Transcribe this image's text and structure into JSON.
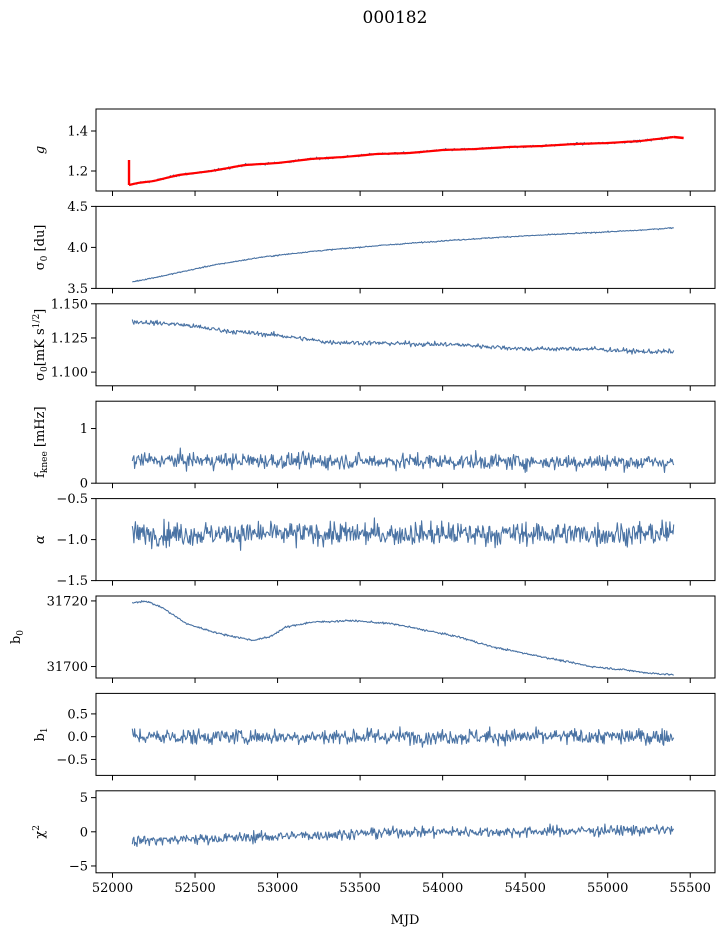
{
  "title": "000182",
  "xlabel": "MJD",
  "colors": {
    "series": "#4a73a4",
    "fit": "#ff0000"
  },
  "chart_data": [
    {
      "type": "line",
      "ylabel": "g",
      "xlim": [
        51900,
        55650
      ],
      "ylim": [
        1.1,
        1.51
      ],
      "yticks": [
        1.2,
        1.4
      ],
      "ytick_labels": [
        "1.2",
        "1.4"
      ],
      "x": [
        52100,
        52150,
        52250,
        52400,
        52600,
        52800,
        53000,
        53200,
        53400,
        53600,
        53800,
        54000,
        54200,
        54400,
        54600,
        54800,
        55000,
        55200,
        55300,
        55400
      ],
      "series": [
        {
          "values": [
            1.13,
            1.14,
            1.15,
            1.18,
            1.2,
            1.23,
            1.24,
            1.26,
            1.27,
            1.285,
            1.29,
            1.305,
            1.31,
            1.32,
            1.325,
            1.335,
            1.34,
            1.35,
            1.36,
            1.37
          ],
          "noise": 0.004
        }
      ],
      "fit_overlay": true,
      "xticklabels": false
    },
    {
      "type": "line",
      "ylabel": "σ0 [du]",
      "xlim": [
        51900,
        55650
      ],
      "ylim": [
        3.5,
        4.5
      ],
      "yticks": [
        3.5,
        4.0,
        4.5
      ],
      "ytick_labels": [
        "3.5",
        "4.0",
        "4.5"
      ],
      "x": [
        52120,
        52300,
        52600,
        52900,
        53200,
        53600,
        54000,
        54400,
        54800,
        55200,
        55400
      ],
      "series": [
        {
          "values": [
            3.58,
            3.65,
            3.78,
            3.88,
            3.95,
            4.02,
            4.08,
            4.13,
            4.17,
            4.21,
            4.24
          ],
          "noise": 0.005
        }
      ],
      "xticklabels": false
    },
    {
      "type": "line",
      "ylabel": "σ0[mK s^1/2]",
      "xlim": [
        51900,
        55650
      ],
      "ylim": [
        1.09,
        1.15
      ],
      "yticks": [
        1.1,
        1.125,
        1.15
      ],
      "ytick_labels": [
        "1.100",
        "1.125",
        "1.150"
      ],
      "x": [
        52120,
        52400,
        52700,
        53000,
        53300,
        53700,
        54100,
        54500,
        54900,
        55200,
        55400
      ],
      "series": [
        {
          "values": [
            1.137,
            1.135,
            1.13,
            1.127,
            1.122,
            1.121,
            1.12,
            1.117,
            1.117,
            1.115,
            1.115
          ],
          "noise": 0.0012
        }
      ],
      "xticklabels": false
    },
    {
      "type": "line",
      "ylabel": "f_knee [mHz]",
      "xlim": [
        51900,
        55650
      ],
      "ylim": [
        0,
        1.5
      ],
      "yticks": [
        0,
        1
      ],
      "ytick_labels": [
        "0",
        "1"
      ],
      "x": [
        52120,
        55400
      ],
      "series": [
        {
          "values": [
            0.42,
            0.38
          ],
          "noise": 0.1
        }
      ],
      "xticklabels": false
    },
    {
      "type": "line",
      "ylabel": "α",
      "xlim": [
        51900,
        55650
      ],
      "ylim": [
        -1.5,
        -0.5
      ],
      "yticks": [
        -1.5,
        -1.0,
        -0.5
      ],
      "ytick_labels": [
        "−1.5",
        "−1.0",
        "−0.5"
      ],
      "x": [
        52120,
        55400
      ],
      "series": [
        {
          "values": [
            -0.93,
            -0.93
          ],
          "noise": 0.1
        }
      ],
      "xticklabels": false
    },
    {
      "type": "line",
      "ylabel": "b0",
      "xlim": [
        51900,
        55650
      ],
      "ylim": [
        31696.5,
        31721.5
      ],
      "yticks": [
        31700,
        31720
      ],
      "ytick_labels": [
        "31700",
        "31720"
      ],
      "x": [
        52120,
        52200,
        52300,
        52450,
        52650,
        52850,
        52950,
        53050,
        53200,
        53450,
        53700,
        53900,
        54100,
        54300,
        54500,
        54700,
        54900,
        55100,
        55250,
        55400
      ],
      "series": [
        {
          "values": [
            31719.5,
            31720,
            31718,
            31713,
            31710,
            31708,
            31709,
            31712,
            31713.5,
            31714,
            31713,
            31711,
            31709,
            31706,
            31704,
            31702,
            31700,
            31699,
            31698,
            31697.5
          ],
          "noise": 0.2
        }
      ],
      "xticklabels": false
    },
    {
      "type": "line",
      "ylabel": "b1",
      "xlim": [
        51900,
        55650
      ],
      "ylim": [
        -0.85,
        0.95
      ],
      "yticks": [
        -0.5,
        0.0,
        0.5
      ],
      "ytick_labels": [
        "−0.5",
        "0.0",
        "0.5"
      ],
      "x": [
        52120,
        55400
      ],
      "series": [
        {
          "values": [
            0.0,
            0.0
          ],
          "noise": 0.12
        }
      ],
      "xticklabels": false
    },
    {
      "type": "line",
      "ylabel": "χ²",
      "xlim": [
        51900,
        55650
      ],
      "ylim": [
        -6,
        6
      ],
      "yticks": [
        -5,
        0,
        5
      ],
      "ytick_labels": [
        "−5",
        "0",
        "5"
      ],
      "x": [
        52120,
        52600,
        53200,
        53800,
        54400,
        55000,
        55400
      ],
      "series": [
        {
          "values": [
            -1.3,
            -1.0,
            -0.5,
            0.0,
            0.0,
            0.2,
            0.3
          ],
          "noise": 0.55
        }
      ],
      "xticks": [
        52000,
        52500,
        53000,
        53500,
        54000,
        54500,
        55000,
        55500
      ],
      "xtick_labels": [
        "52000",
        "52500",
        "53000",
        "53500",
        "54000",
        "54500",
        "55000",
        "55500"
      ],
      "xticklabels": true
    }
  ]
}
